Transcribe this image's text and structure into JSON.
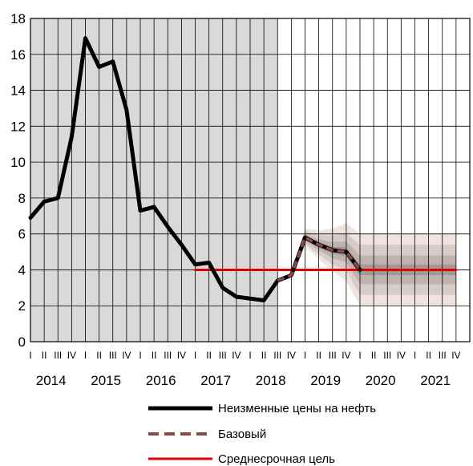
{
  "chart_data": {
    "type": "line",
    "ylim": [
      0,
      18
    ],
    "yticks": [
      0,
      2,
      4,
      6,
      8,
      10,
      12,
      14,
      16,
      18
    ],
    "quarters": [
      "I",
      "II",
      "III",
      "IV"
    ],
    "years": [
      "2014",
      "2015",
      "2016",
      "2017",
      "2018",
      "2019",
      "2020",
      "2021"
    ],
    "shaded_history_through": "2018 III",
    "series": [
      {
        "name": "Неизменные цены на нефть",
        "color": "#000000",
        "style": "solid",
        "points": [
          [
            "2014 I",
            6.9
          ],
          [
            "2014 II",
            7.8
          ],
          [
            "2014 III",
            8.0
          ],
          [
            "2014 IV",
            11.4
          ],
          [
            "2015 I",
            16.9
          ],
          [
            "2015 II",
            15.3
          ],
          [
            "2015 III",
            15.6
          ],
          [
            "2015 IV",
            12.9
          ],
          [
            "2016 I",
            7.3
          ],
          [
            "2016 II",
            7.5
          ],
          [
            "2016 III",
            6.4
          ],
          [
            "2016 IV",
            5.4
          ],
          [
            "2017 I",
            4.3
          ],
          [
            "2017 II",
            4.4
          ],
          [
            "2017 III",
            3.0
          ],
          [
            "2017 IV",
            2.5
          ],
          [
            "2018 I",
            2.4
          ],
          [
            "2018 II",
            2.3
          ],
          [
            "2018 III",
            3.4
          ],
          [
            "2018 IV",
            3.7
          ],
          [
            "2019 I",
            5.8
          ],
          [
            "2019 II",
            5.4
          ],
          [
            "2019 III",
            5.1
          ],
          [
            "2019 IV",
            5.0
          ],
          [
            "2020 I",
            4.0
          ]
        ]
      },
      {
        "name": "Базовый",
        "color": "#8b4a4a",
        "style": "dashed",
        "points": [
          [
            "2018 III",
            3.4
          ],
          [
            "2018 IV",
            3.7
          ],
          [
            "2019 I",
            5.8
          ],
          [
            "2019 II",
            5.4
          ],
          [
            "2019 III",
            5.1
          ],
          [
            "2019 IV",
            5.0
          ],
          [
            "2020 I",
            4.0
          ]
        ]
      },
      {
        "name": "Среднесрочная цель",
        "color": "#e00000",
        "style": "solid",
        "points": [
          [
            "2017 I",
            4.0
          ],
          [
            "2021 IV",
            4.0
          ]
        ]
      }
    ],
    "fan": {
      "center": [
        [
          "2018 IV",
          3.7
        ],
        [
          "2019 I",
          5.8
        ],
        [
          "2019 II",
          5.4
        ],
        [
          "2019 III",
          5.1
        ],
        [
          "2019 IV",
          5.0
        ],
        [
          "2020 I",
          4.0
        ],
        [
          "2021 IV",
          4.0
        ]
      ],
      "bands_half_width": [
        [
          0.2,
          0.5,
          0.8,
          1.2,
          1.6,
          2.0,
          2.0
        ],
        [
          0.15,
          0.35,
          0.55,
          0.8,
          1.05,
          1.4,
          1.4
        ],
        [
          0.1,
          0.2,
          0.3,
          0.45,
          0.6,
          0.8,
          0.8
        ],
        [
          0.05,
          0.1,
          0.15,
          0.2,
          0.25,
          0.3,
          0.3
        ]
      ],
      "band_colors": [
        "#eee3df",
        "#d8ccc8",
        "#bfb3b0",
        "#a49997"
      ]
    },
    "colors": {
      "history_shade": "#d9d9d9",
      "grid": "#000000"
    },
    "legend_placement": "bottom-center"
  }
}
